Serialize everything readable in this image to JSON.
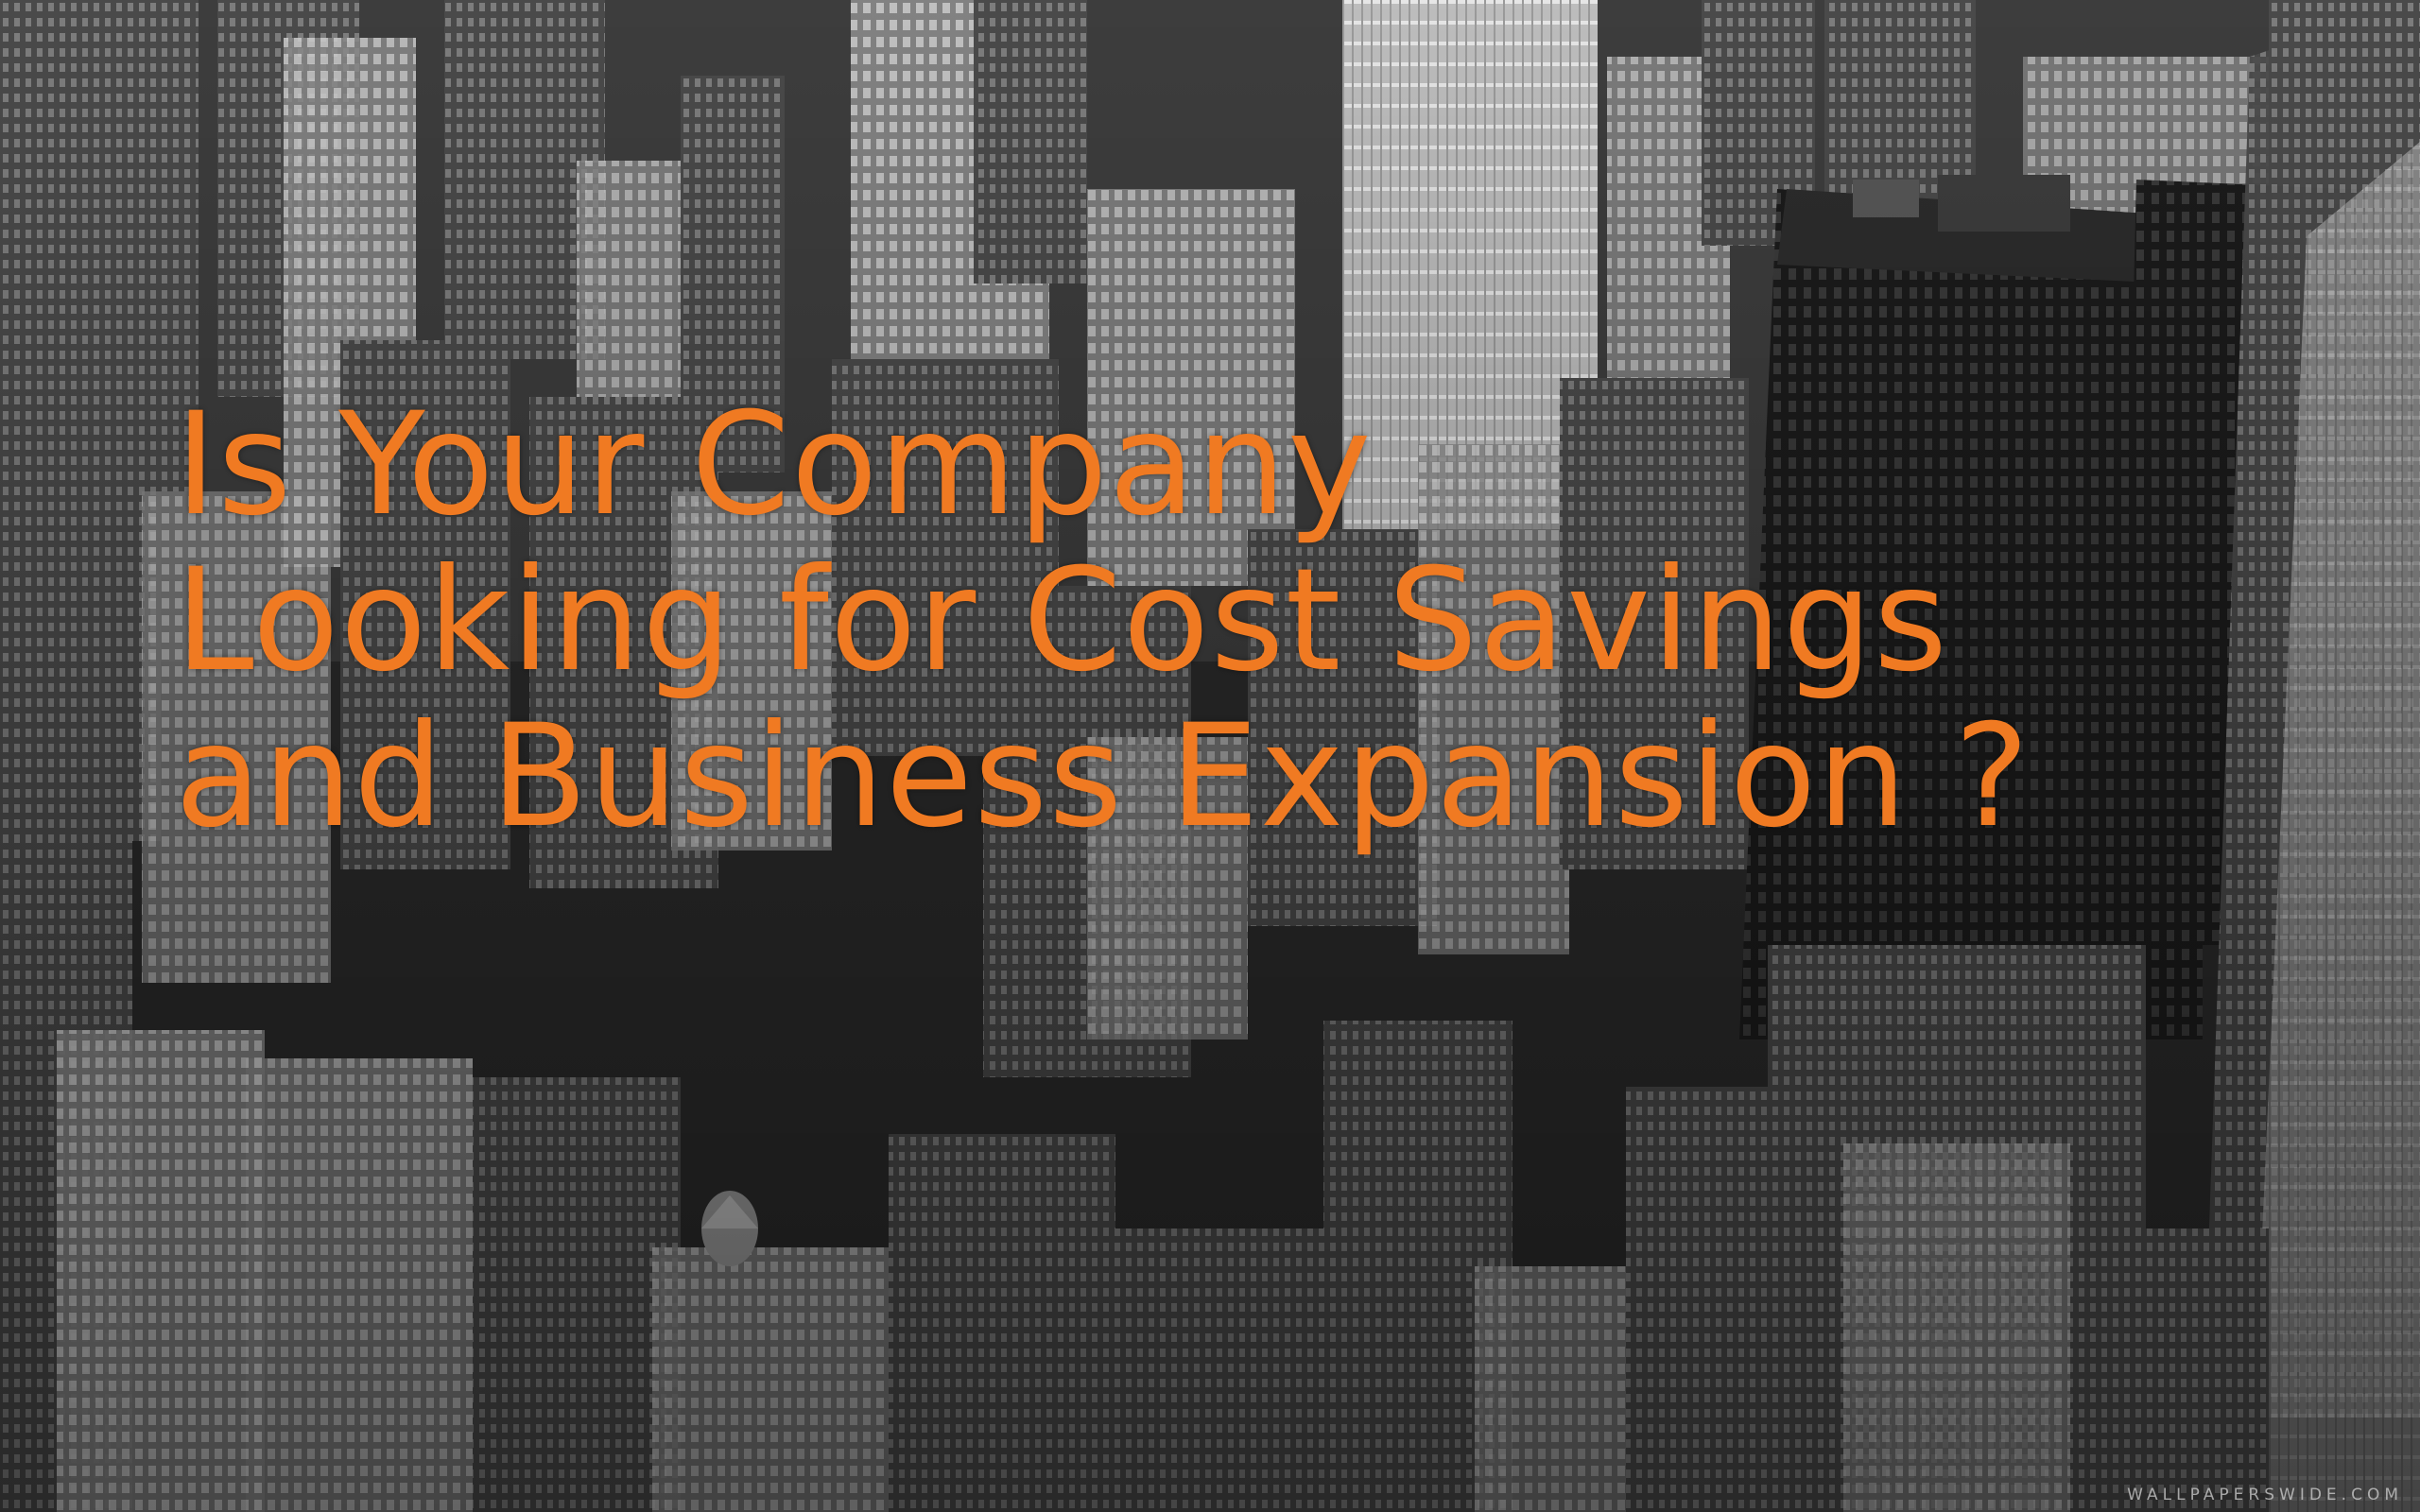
{
  "headline": {
    "line1": "Is Your Company",
    "line2": "Looking for Cost Savings",
    "line3": "and Business Expansion ?"
  },
  "watermark": "WALLPAPERSWIDE.COM",
  "colors": {
    "headline": "#f07a22",
    "photo_tone": "grayscale"
  }
}
